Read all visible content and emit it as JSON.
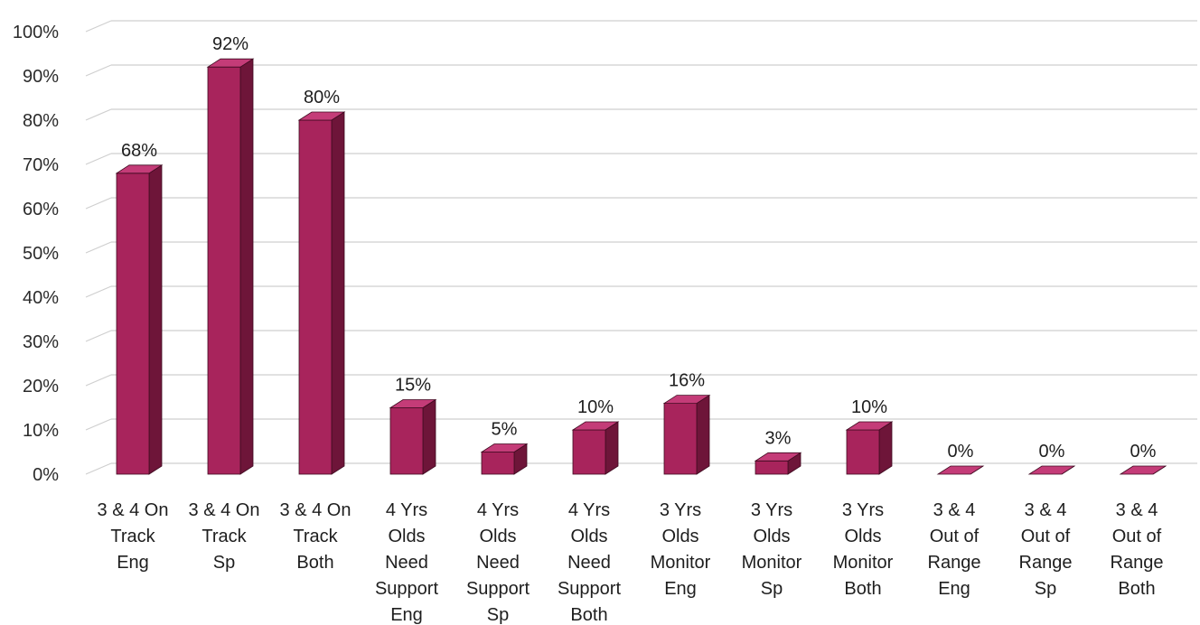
{
  "chart_data": {
    "type": "bar",
    "style": "3d-column",
    "categories": [
      [
        "3 & 4 On",
        "Track",
        "Eng"
      ],
      [
        "3 & 4 On",
        "Track",
        "Sp"
      ],
      [
        "3 & 4 On",
        "Track",
        "Both"
      ],
      [
        "4 Yrs",
        "Olds",
        "Need",
        "Support",
        "Eng"
      ],
      [
        "4 Yrs",
        "Olds",
        "Need",
        "Support",
        "Sp"
      ],
      [
        "4 Yrs",
        "Olds",
        "Need",
        "Support",
        "Both"
      ],
      [
        "3 Yrs",
        "Olds",
        "Monitor",
        "Eng"
      ],
      [
        "3 Yrs",
        "Olds",
        "Monitor",
        "Sp"
      ],
      [
        "3 Yrs",
        "Olds",
        "Monitor",
        "Both"
      ],
      [
        "3 & 4",
        "Out of",
        "Range",
        "Eng"
      ],
      [
        "3 & 4",
        "Out of",
        "Range",
        "Sp"
      ],
      [
        "3 & 4",
        "Out of",
        "Range",
        "Both"
      ]
    ],
    "values": [
      68,
      92,
      80,
      15,
      5,
      10,
      16,
      3,
      10,
      0,
      0,
      0
    ],
    "data_labels": [
      "68%",
      "92%",
      "80%",
      "15%",
      "5%",
      "10%",
      "16%",
      "3%",
      "10%",
      "0%",
      "0%",
      "0%"
    ],
    "ylim": [
      0,
      100
    ],
    "y_ticks": [
      "0%",
      "10%",
      "20%",
      "30%",
      "40%",
      "50%",
      "60%",
      "70%",
      "80%",
      "90%",
      "100%"
    ],
    "grid": true,
    "legend": "none",
    "title": "",
    "xlabel": "",
    "ylabel": "",
    "colors": {
      "bar_front": "#a8245c",
      "bar_side": "#6e1539",
      "bar_top": "#c43c78",
      "bar_edge": "#3f0a20",
      "grid": "#cfcfcf"
    }
  }
}
